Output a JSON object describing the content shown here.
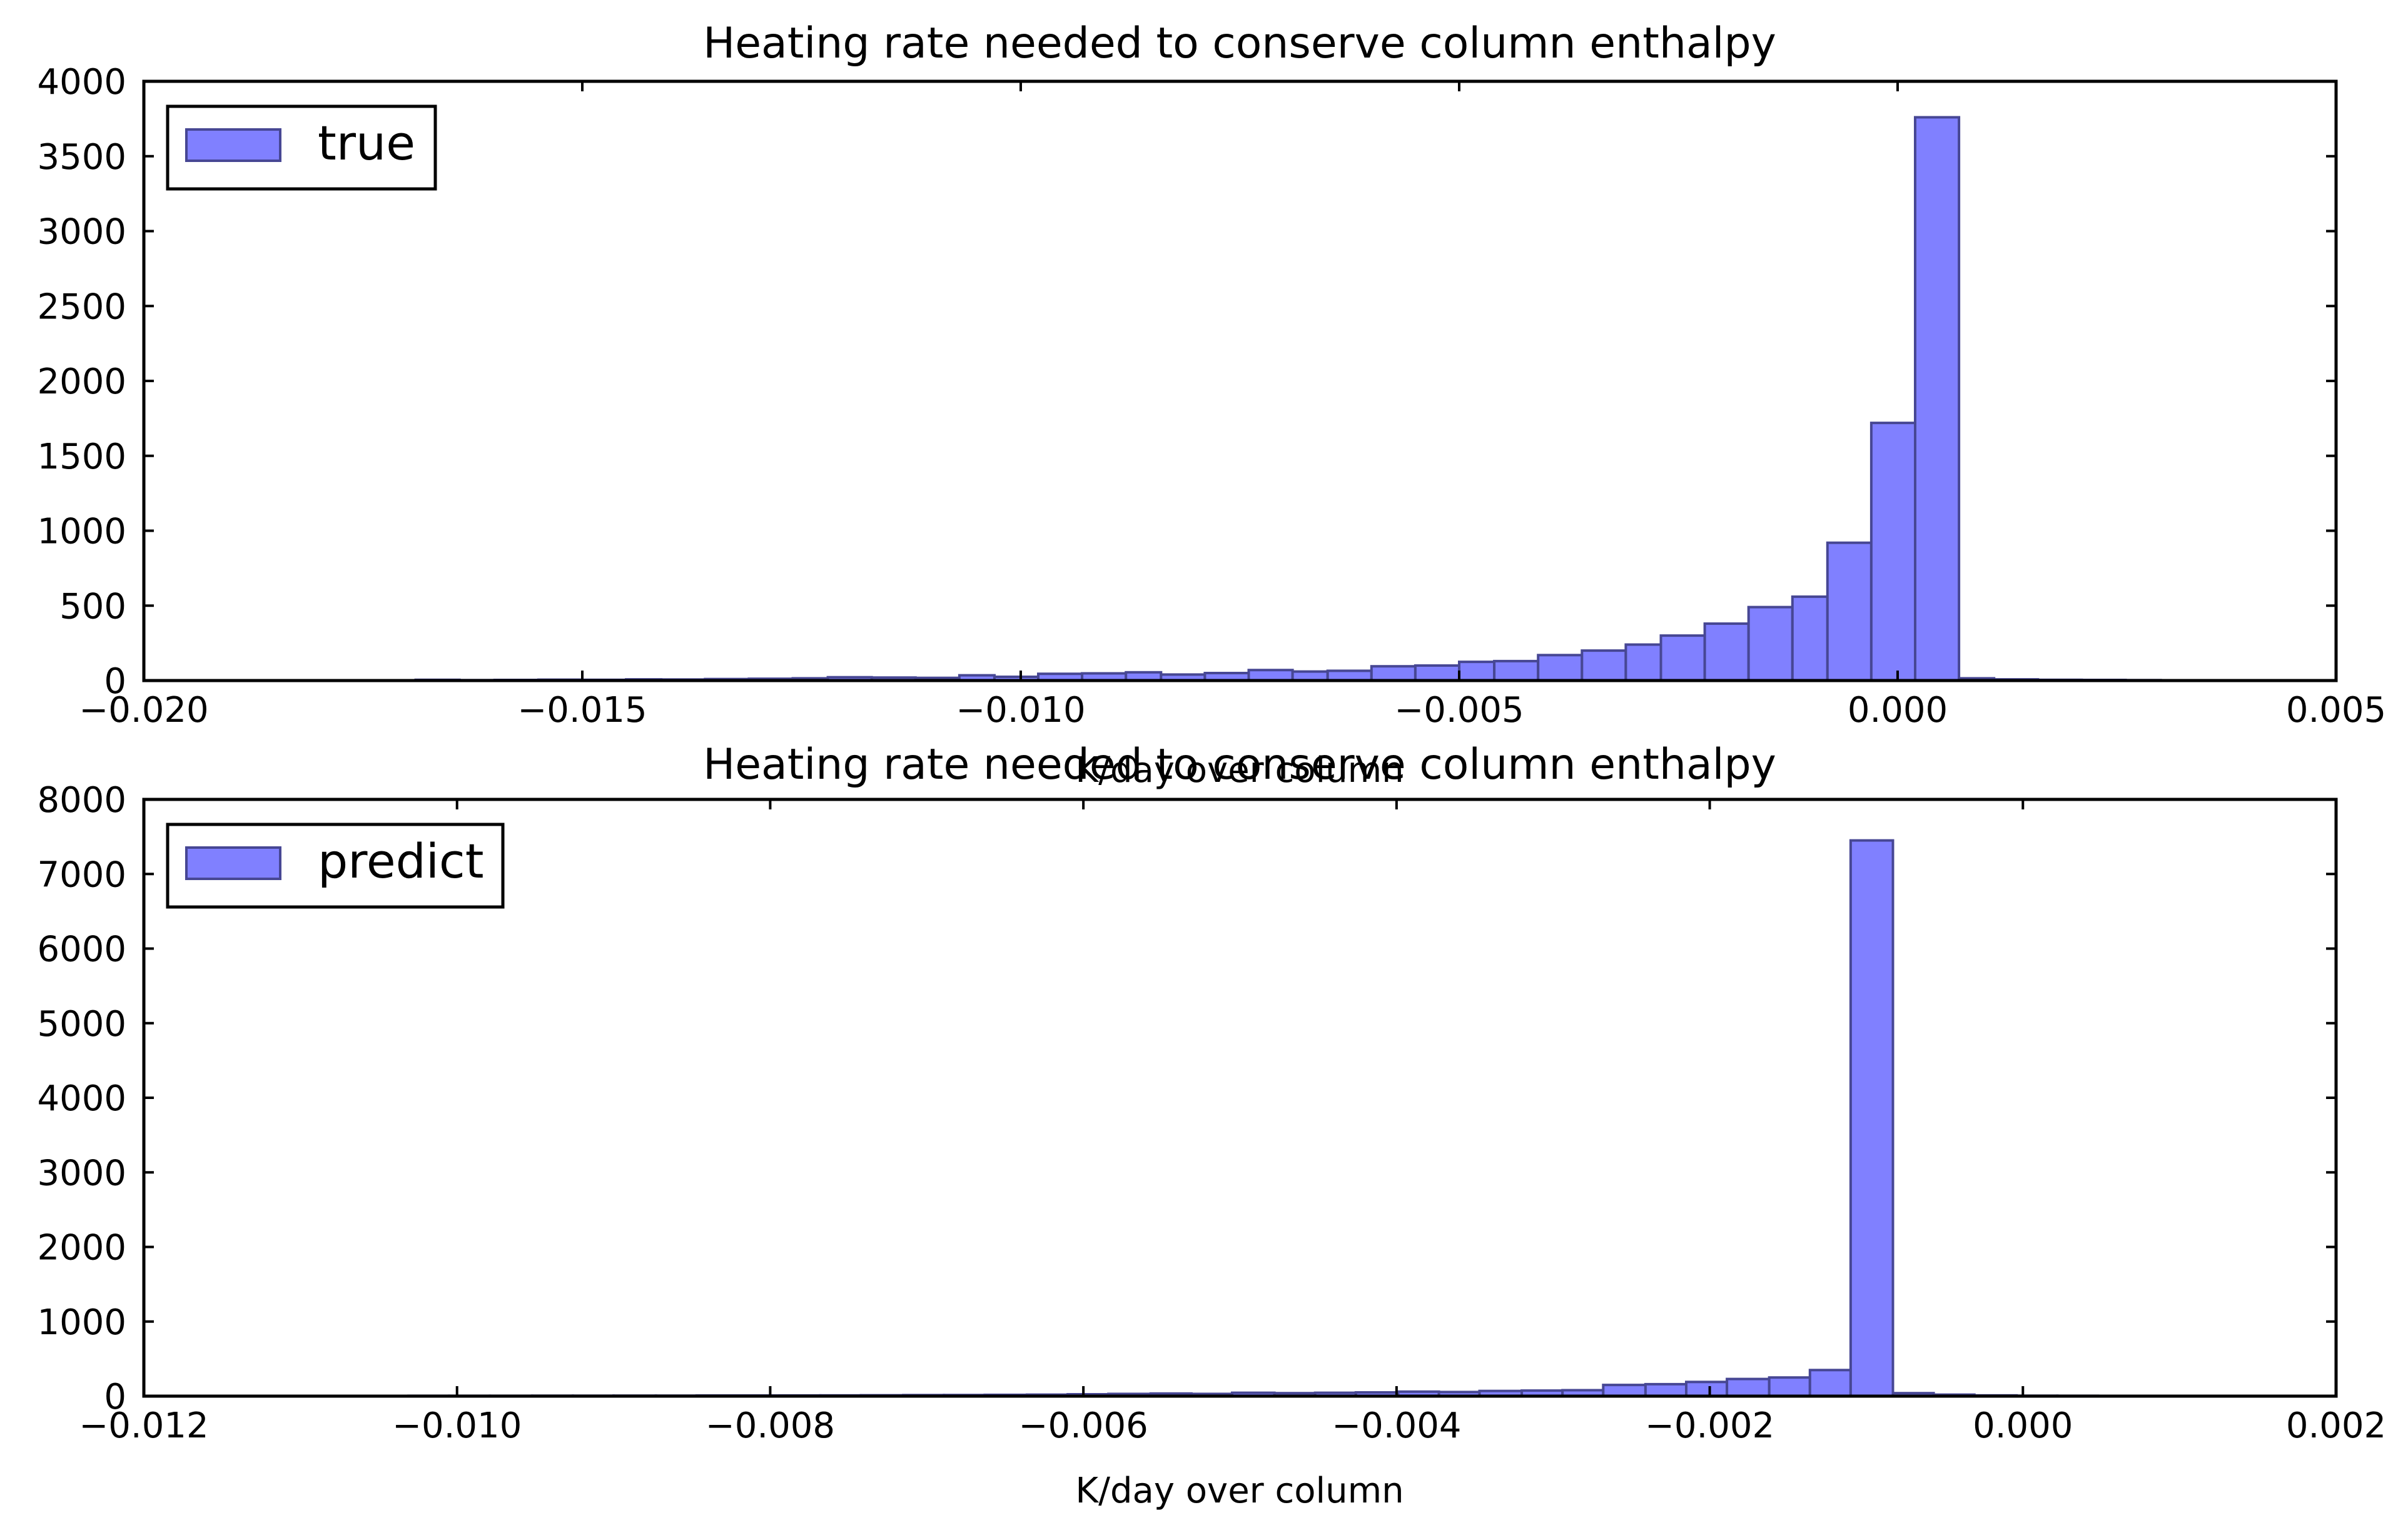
{
  "chart_data": [
    {
      "type": "bar",
      "title": "Heating rate needed to conserve column enthalpy",
      "xlabel": "K/day over column",
      "ylabel": "",
      "xlim": [
        -0.02,
        0.005
      ],
      "ylim": [
        0,
        4000
      ],
      "xticks": [
        "−0.020",
        "−0.015",
        "−0.010",
        "−0.005",
        "0.000",
        "0.005"
      ],
      "yticks": [
        "0",
        "500",
        "1000",
        "1500",
        "2000",
        "2500",
        "3000",
        "3500",
        "4000"
      ],
      "legend_position": "top-left",
      "color": "#8080ff",
      "edge_color": "#474794",
      "series": [
        {
          "name": "true",
          "bin_edges": [
            -0.0169,
            -0.0164,
            -0.016,
            -0.0155,
            -0.015,
            -0.0145,
            -0.0141,
            -0.0136,
            -0.0131,
            -0.0126,
            -0.0122,
            -0.0117,
            -0.0112,
            -0.0107,
            -0.0103,
            -0.0098,
            -0.0093,
            -0.0088,
            -0.0084,
            -0.0079,
            -0.0074,
            -0.0069,
            -0.0065,
            -0.006,
            -0.0055,
            -0.005,
            -0.0046,
            -0.0041,
            -0.0036,
            -0.0031,
            -0.0027,
            -0.0022,
            -0.0017,
            -0.0012,
            -0.0008,
            -0.0003,
            0.0002,
            0.0007,
            0.0011,
            0.0016,
            0.0021,
            0.0026,
            0.003
          ],
          "values": [
            5,
            3,
            4,
            6,
            5,
            8,
            7,
            10,
            12,
            15,
            22,
            20,
            18,
            35,
            25,
            45,
            48,
            55,
            40,
            50,
            70,
            60,
            65,
            95,
            100,
            125,
            130,
            170,
            200,
            240,
            300,
            380,
            490,
            560,
            920,
            1720,
            3760,
            15,
            8,
            5,
            4,
            3
          ]
        }
      ]
    },
    {
      "type": "bar",
      "title": "Heating rate needed to conserve column enthalpy",
      "xlabel": "K/day over column",
      "ylabel": "",
      "xlim": [
        -0.012,
        0.002
      ],
      "ylim": [
        0,
        8000
      ],
      "xticks": [
        "−0.012",
        "−0.010",
        "−0.008",
        "−0.006",
        "−0.004",
        "−0.002",
        "0.000",
        "0.002"
      ],
      "yticks": [
        "0",
        "1000",
        "2000",
        "3000",
        "4000",
        "5000",
        "6000",
        "7000",
        "8000"
      ],
      "legend_position": "top-left",
      "color": "#8080ff",
      "edge_color": "#474794",
      "series": [
        {
          "name": "predict",
          "bin_edges": [
            -0.01137,
            -0.0111,
            -0.01084,
            -0.01058,
            -0.01031,
            -0.01005,
            -0.00979,
            -0.00952,
            -0.00926,
            -0.009,
            -0.00873,
            -0.00847,
            -0.00821,
            -0.00794,
            -0.00768,
            -0.00742,
            -0.00715,
            -0.00689,
            -0.00663,
            -0.00636,
            -0.0061,
            -0.00584,
            -0.00557,
            -0.00531,
            -0.00505,
            -0.00478,
            -0.00452,
            -0.00426,
            -0.00399,
            -0.00373,
            -0.00347,
            -0.0032,
            -0.00294,
            -0.00268,
            -0.00241,
            -0.00215,
            -0.00189,
            -0.00162,
            -0.00136,
            -0.0011,
            -0.00083,
            -0.00057,
            -0.00031,
            -4e-05,
            0.00022,
            0.00048,
            0.00075,
            0.00101,
            0.00127,
            0.00154,
            0.0018
          ],
          "values": [
            3,
            3,
            4,
            4,
            5,
            5,
            5,
            6,
            6,
            7,
            7,
            8,
            8,
            9,
            10,
            12,
            14,
            15,
            18,
            20,
            25,
            30,
            35,
            30,
            45,
            40,
            45,
            50,
            60,
            55,
            70,
            75,
            80,
            150,
            160,
            190,
            230,
            250,
            350,
            7450,
            40,
            20,
            10,
            6,
            5,
            4,
            4,
            3,
            3,
            3
          ]
        }
      ]
    }
  ]
}
